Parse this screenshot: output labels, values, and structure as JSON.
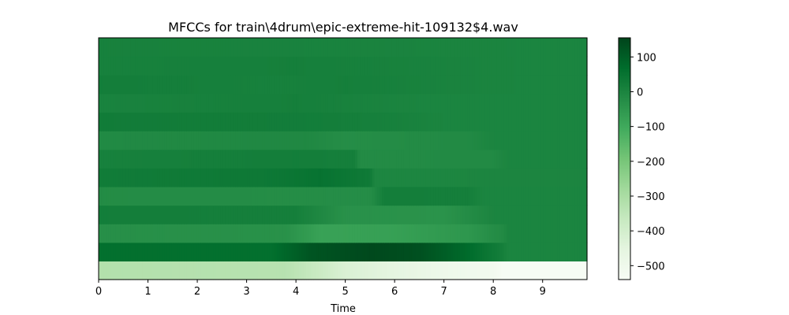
{
  "chart_data": {
    "type": "heatmap",
    "title": "MFCCs for train\\4drum\\epic-extreme-hit-109132$4.wav",
    "xlabel": "Time",
    "ylabel": "",
    "xlim": [
      0,
      9.9
    ],
    "x_ticks": [
      0,
      1,
      2,
      3,
      4,
      5,
      6,
      7,
      8,
      9
    ],
    "y_ticks": [],
    "n_coefficients": 13,
    "colormap": "Greens",
    "colorbar": {
      "vmin": -540,
      "vmax": 155,
      "ticks": [
        100,
        0,
        -100,
        -200,
        -300,
        -400,
        -500
      ],
      "tick_labels": [
        "100",
        "0",
        "−100",
        "−200",
        "−300",
        "−400",
        "−500"
      ]
    },
    "rows_bottom_to_top": [
      {
        "coef": 0,
        "profile": [
          [
            0,
            -320
          ],
          [
            3.8,
            -330
          ],
          [
            4.4,
            -370
          ],
          [
            5,
            -420
          ],
          [
            6,
            -455
          ],
          [
            7,
            -495
          ],
          [
            8,
            -515
          ],
          [
            8.2,
            -535
          ],
          [
            9.9,
            -535
          ]
        ]
      },
      {
        "coef": 1,
        "profile": [
          [
            0,
            60
          ],
          [
            3.5,
            60
          ],
          [
            4.3,
            120
          ],
          [
            5.5,
            145
          ],
          [
            6.5,
            130
          ],
          [
            7.5,
            70
          ],
          [
            8.2,
            15
          ],
          [
            8.3,
            0
          ],
          [
            9.9,
            0
          ]
        ]
      },
      {
        "coef": 2,
        "profile": [
          [
            0,
            -30
          ],
          [
            3.8,
            -35
          ],
          [
            4.5,
            -80
          ],
          [
            6,
            -75
          ],
          [
            7.5,
            -50
          ],
          [
            8.2,
            -15
          ],
          [
            8.3,
            0
          ],
          [
            9.9,
            0
          ]
        ]
      },
      {
        "coef": 3,
        "profile": [
          [
            0,
            20
          ],
          [
            4,
            15
          ],
          [
            5,
            -35
          ],
          [
            7,
            -40
          ],
          [
            7.9,
            -5
          ],
          [
            8,
            0
          ],
          [
            9.9,
            0
          ]
        ]
      },
      {
        "coef": 4,
        "profile": [
          [
            0,
            -20
          ],
          [
            5.5,
            -25
          ],
          [
            5.8,
            20
          ],
          [
            7.5,
            15
          ],
          [
            7.8,
            0
          ],
          [
            9.9,
            0
          ]
        ]
      },
      {
        "coef": 5,
        "profile": [
          [
            0,
            25
          ],
          [
            3.5,
            35
          ],
          [
            4.5,
            50
          ],
          [
            5.5,
            30
          ],
          [
            5.6,
            -5
          ],
          [
            9.9,
            0
          ]
        ]
      },
      {
        "coef": 6,
        "profile": [
          [
            0,
            10
          ],
          [
            4,
            20
          ],
          [
            5.2,
            15
          ],
          [
            5.3,
            -20
          ],
          [
            8,
            -15
          ],
          [
            8.3,
            0
          ],
          [
            9.9,
            0
          ]
        ]
      },
      {
        "coef": 7,
        "profile": [
          [
            0,
            -15
          ],
          [
            4.2,
            -10
          ],
          [
            5,
            -25
          ],
          [
            7.5,
            -15
          ],
          [
            8,
            0
          ],
          [
            9.9,
            0
          ]
        ]
      },
      {
        "coef": 8,
        "profile": [
          [
            0,
            25
          ],
          [
            4.5,
            20
          ],
          [
            6,
            10
          ],
          [
            7,
            0
          ],
          [
            9.9,
            0
          ]
        ]
      },
      {
        "coef": 9,
        "profile": [
          [
            0,
            5
          ],
          [
            4,
            15
          ],
          [
            5.5,
            5
          ],
          [
            6.5,
            0
          ],
          [
            9.9,
            0
          ]
        ]
      },
      {
        "coef": 10,
        "profile": [
          [
            0,
            20
          ],
          [
            3.5,
            10
          ],
          [
            5,
            15
          ],
          [
            7,
            5
          ],
          [
            8.5,
            0
          ],
          [
            9.9,
            0
          ]
        ]
      },
      {
        "coef": 11,
        "profile": [
          [
            0,
            10
          ],
          [
            4,
            15
          ],
          [
            5.5,
            10
          ],
          [
            8.5,
            0
          ],
          [
            9.9,
            0
          ]
        ]
      },
      {
        "coef": 12,
        "profile": [
          [
            0,
            10
          ],
          [
            5,
            5
          ],
          [
            8.5,
            0
          ],
          [
            9.9,
            0
          ]
        ]
      }
    ]
  }
}
